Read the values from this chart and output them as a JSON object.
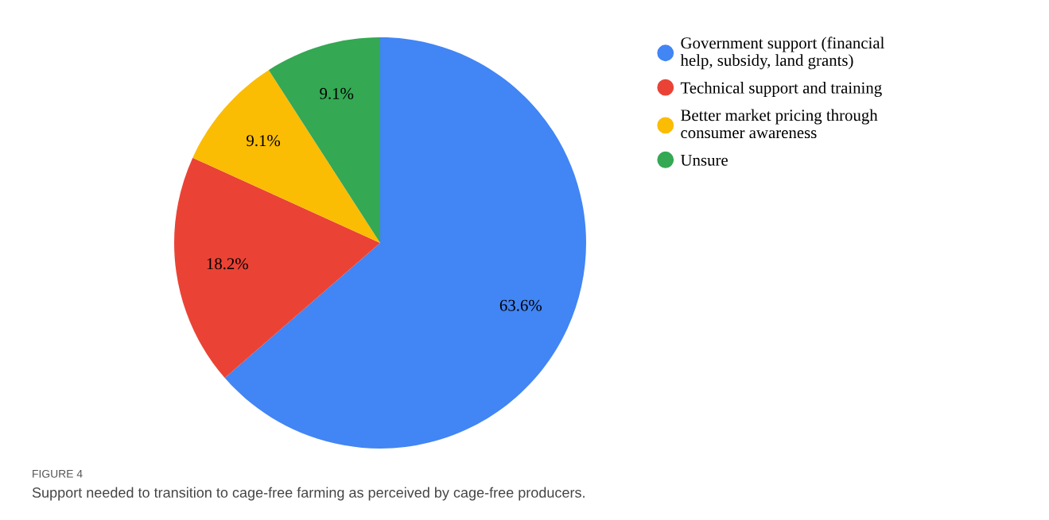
{
  "chart_data": {
    "type": "pie",
    "categories": [
      "Government support (financial\nhelp, subsidy, land grants)",
      "Technical support and training",
      "Better market pricing through\nconsumer awareness",
      "Unsure"
    ],
    "values": [
      63.6,
      18.2,
      9.1,
      9.1
    ],
    "colors": [
      "#4285f4",
      "#ea4335",
      "#fbbc04",
      "#34a853"
    ],
    "value_labels": [
      "63.6%",
      "18.2%",
      "9.1%",
      "9.1%"
    ],
    "legend": "right",
    "annotations": [
      "FIGURE 4",
      "Support needed to transition to cage-free farming as perceived by cage-free producers."
    ]
  }
}
